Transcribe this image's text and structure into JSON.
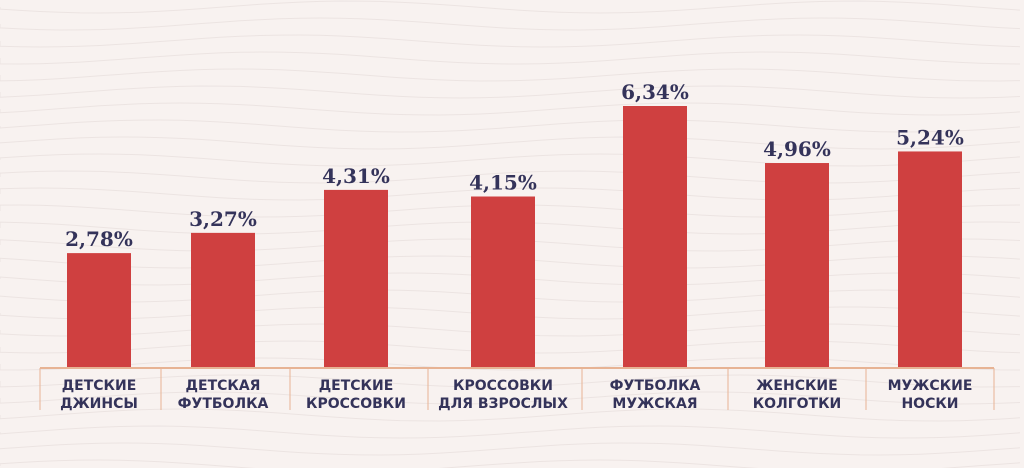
{
  "chart_data": {
    "type": "bar",
    "categories": [
      [
        "ДЕТСКИЕ",
        "ДЖИНСЫ"
      ],
      [
        "ДЕТСКАЯ",
        "ФУТБОЛКА"
      ],
      [
        "ДЕТСКИЕ",
        "КРОССОВКИ"
      ],
      [
        "КРОССОВКИ",
        "ДЛЯ ВЗРОСЛЫХ"
      ],
      [
        "ФУТБОЛКА",
        "МУЖСКАЯ"
      ],
      [
        "ЖЕНСКИЕ",
        "КОЛГОТКИ"
      ],
      [
        "МУЖСКИЕ",
        "НОСКИ"
      ]
    ],
    "values": [
      2.78,
      3.27,
      4.31,
      4.15,
      6.34,
      4.96,
      5.24
    ],
    "value_labels": [
      "2,78%",
      "3,27%",
      "4,31%",
      "4,15%",
      "6,34%",
      "4,96%",
      "5,24%"
    ],
    "ylim": [
      0,
      6.34
    ],
    "title": "",
    "xlabel": "",
    "ylabel": "",
    "grid": false,
    "legend": "none"
  },
  "colors": {
    "background": "#f8f2f0",
    "bar": "#cf4040",
    "axis": "#e7b394",
    "text": "#34335a",
    "wave": "#ece4e2"
  }
}
